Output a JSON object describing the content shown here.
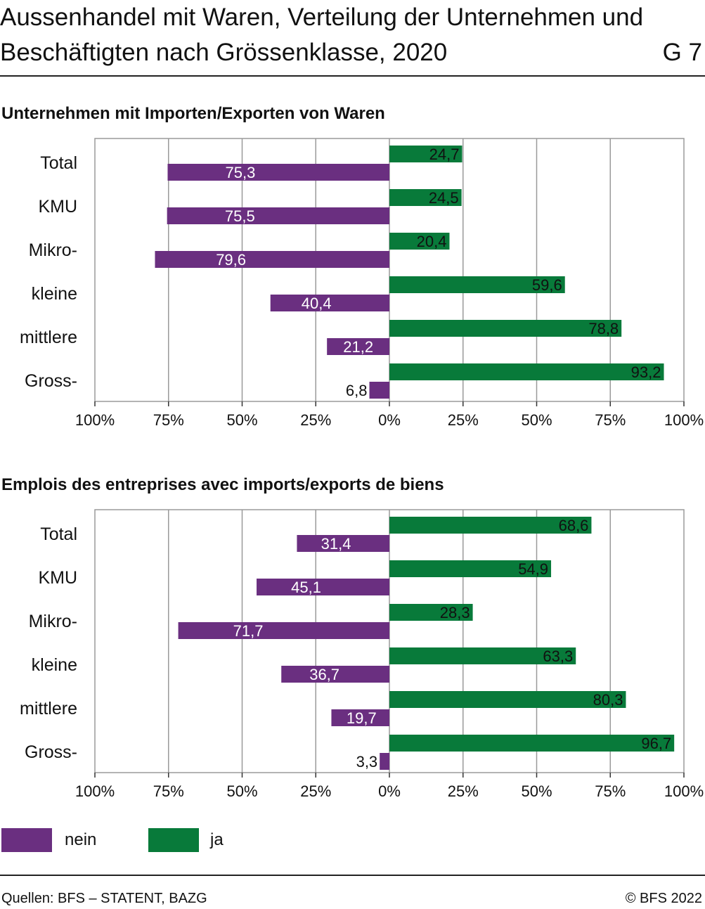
{
  "header": {
    "title": "Aussenhandel mit Waren, Verteilung der Unternehmen und Beschäftigten nach Grössenklasse, 2020",
    "graphic_number": "G 7"
  },
  "colors": {
    "nein": "#6a2f80",
    "ja": "#087a3a",
    "grid": "#9a9a9a",
    "frame": "#9a9a9a"
  },
  "chart_data": [
    {
      "type": "bar",
      "orientation": "horizontal-diverging",
      "title": "Unternehmen mit Importen/Exporten von Waren",
      "categories": [
        "Total",
        "KMU",
        "Mikro-",
        "kleine",
        "mittlere",
        "Gross-"
      ],
      "series": [
        {
          "name": "ja",
          "values": [
            24.7,
            24.5,
            20.4,
            59.6,
            78.8,
            93.2
          ],
          "labels": [
            "24,7",
            "24,5",
            "20,4",
            "59,6",
            "78,8",
            "93,2"
          ]
        },
        {
          "name": "nein",
          "values": [
            75.3,
            75.5,
            79.6,
            40.4,
            21.2,
            6.8
          ],
          "labels": [
            "75,3",
            "75,5",
            "79,6",
            "40,4",
            "21,2",
            "6,8"
          ]
        }
      ],
      "x_ticks": [
        "100%",
        "75%",
        "50%",
        "25%",
        "0%",
        "25%",
        "50%",
        "75%",
        "100%"
      ],
      "xlim": [
        -100,
        100
      ],
      "grid": true
    },
    {
      "type": "bar",
      "orientation": "horizontal-diverging",
      "title": "Emplois des entreprises avec imports/exports de biens",
      "categories": [
        "Total",
        "KMU",
        "Mikro-",
        "kleine",
        "mittlere",
        "Gross-"
      ],
      "series": [
        {
          "name": "ja",
          "values": [
            68.6,
            54.9,
            28.3,
            63.3,
            80.3,
            96.7
          ],
          "labels": [
            "68,6",
            "54,9",
            "28,3",
            "63,3",
            "80,3",
            "96,7"
          ]
        },
        {
          "name": "nein",
          "values": [
            31.4,
            45.1,
            71.7,
            36.7,
            19.7,
            3.3
          ],
          "labels": [
            "31,4",
            "45,1",
            "71,7",
            "36,7",
            "19,7",
            "3,3"
          ]
        }
      ],
      "x_ticks": [
        "100%",
        "75%",
        "50%",
        "25%",
        "0%",
        "25%",
        "50%",
        "75%",
        "100%"
      ],
      "xlim": [
        -100,
        100
      ],
      "grid": true
    }
  ],
  "legend": [
    {
      "key": "nein",
      "label": "nein"
    },
    {
      "key": "ja",
      "label": "ja"
    }
  ],
  "footer": {
    "source": "Quellen: BFS – STATENT, BAZG",
    "copyright": "© BFS 2022"
  }
}
